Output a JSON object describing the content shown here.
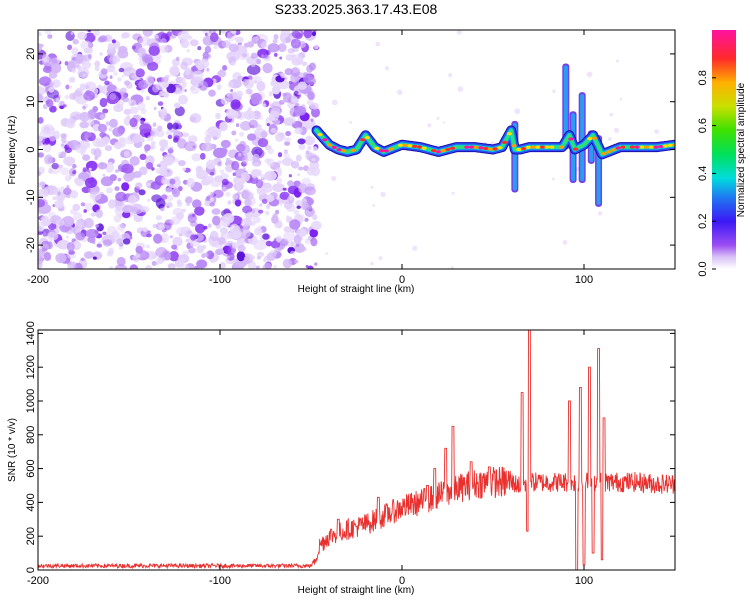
{
  "title": "S233.2025.363.17.43.E08",
  "colors": {
    "snr_line": "#e8302e",
    "noise_points": "#7a1ff0",
    "frame": "#000000"
  },
  "chart_data": [
    {
      "type": "heatmap",
      "name": "spectrogram",
      "xlabel": "Height of straight line (km)",
      "ylabel": "Frequency (Hz)",
      "xlim": [
        -200,
        150
      ],
      "ylim": [
        -25,
        25
      ],
      "xticks": [
        -200,
        -100,
        0,
        100
      ],
      "yticks": [
        -20,
        -10,
        0,
        10,
        20
      ],
      "colorbar": {
        "label": "Normalized spectral amplitude",
        "range": [
          0,
          1
        ],
        "ticks": [
          0.0,
          0.2,
          0.4,
          0.6,
          0.8
        ],
        "colormap": "rainbow (white-purple-blue-cyan-green-yellow-red-magenta)"
      },
      "noise_region_x": [
        -200,
        -47
      ],
      "signal_track": {
        "x": [
          -47,
          -40,
          -35,
          -30,
          -25,
          -20,
          -15,
          -10,
          0,
          10,
          20,
          30,
          40,
          50,
          55,
          60,
          62,
          65,
          70,
          80,
          88,
          92,
          95,
          100,
          105,
          110,
          120,
          130,
          140,
          150
        ],
        "freq": [
          4,
          1,
          0,
          -0.5,
          0,
          3,
          0.5,
          -0.5,
          1,
          0.5,
          -0.5,
          0.5,
          0.5,
          0,
          0.5,
          4,
          0,
          0,
          0.5,
          0.5,
          0.5,
          3,
          0,
          1,
          3,
          -1,
          0.5,
          0.5,
          0.5,
          1
        ],
        "peak_amplitude": 0.9
      },
      "spikes": [
        {
          "x": 62,
          "freq_range": [
            -9,
            6
          ]
        },
        {
          "x": 90,
          "freq_range": [
            0,
            18
          ]
        },
        {
          "x": 94,
          "freq_range": [
            -7,
            8
          ]
        },
        {
          "x": 99,
          "freq_range": [
            -7,
            12
          ]
        },
        {
          "x": 104,
          "freq_range": [
            -3,
            4
          ]
        },
        {
          "x": 108,
          "freq_range": [
            -12,
            3
          ]
        }
      ]
    },
    {
      "type": "line",
      "name": "snr",
      "xlabel": "Height of straight line (km)",
      "ylabel": "SNR (10 * v/v)",
      "xlim": [
        -200,
        150
      ],
      "ylim": [
        0,
        1420
      ],
      "xticks": [
        -200,
        -100,
        0,
        100
      ],
      "yticks": [
        0,
        200,
        400,
        600,
        800,
        1000,
        1200,
        1400
      ],
      "series": [
        {
          "name": "SNR",
          "baseline": {
            "x": [
              -200,
              -50,
              -48,
              -45,
              -40,
              -30,
              -20,
              -10,
              0,
              10,
              20,
              30,
              40,
              50,
              60,
              65,
              70,
              80,
              90,
              100,
              110,
              120,
              130,
              140,
              150
            ],
            "y": [
              25,
              25,
              60,
              150,
              200,
              240,
              270,
              320,
              370,
              400,
              440,
              480,
              510,
              520,
              520,
              500,
              520,
              520,
              520,
              520,
              520,
              520,
              520,
              510,
              510
            ]
          },
          "spikes": [
            {
              "x": -35,
              "y": 300
            },
            {
              "x": -13,
              "y": 430
            },
            {
              "x": 14,
              "y": 500
            },
            {
              "x": 18,
              "y": 600
            },
            {
              "x": 24,
              "y": 720
            },
            {
              "x": 28,
              "y": 850
            },
            {
              "x": 38,
              "y": 640
            },
            {
              "x": 48,
              "y": 610
            },
            {
              "x": 66,
              "y": 1050
            },
            {
              "x": 69,
              "y": 230
            },
            {
              "x": 70,
              "y": 1420
            },
            {
              "x": 92,
              "y": 1000
            },
            {
              "x": 96,
              "y": 0
            },
            {
              "x": 98,
              "y": 1080
            },
            {
              "x": 100,
              "y": 30
            },
            {
              "x": 103,
              "y": 1200
            },
            {
              "x": 105,
              "y": 100
            },
            {
              "x": 108,
              "y": 1310
            },
            {
              "x": 110,
              "y": 60
            },
            {
              "x": 111,
              "y": 900
            }
          ]
        }
      ]
    }
  ]
}
